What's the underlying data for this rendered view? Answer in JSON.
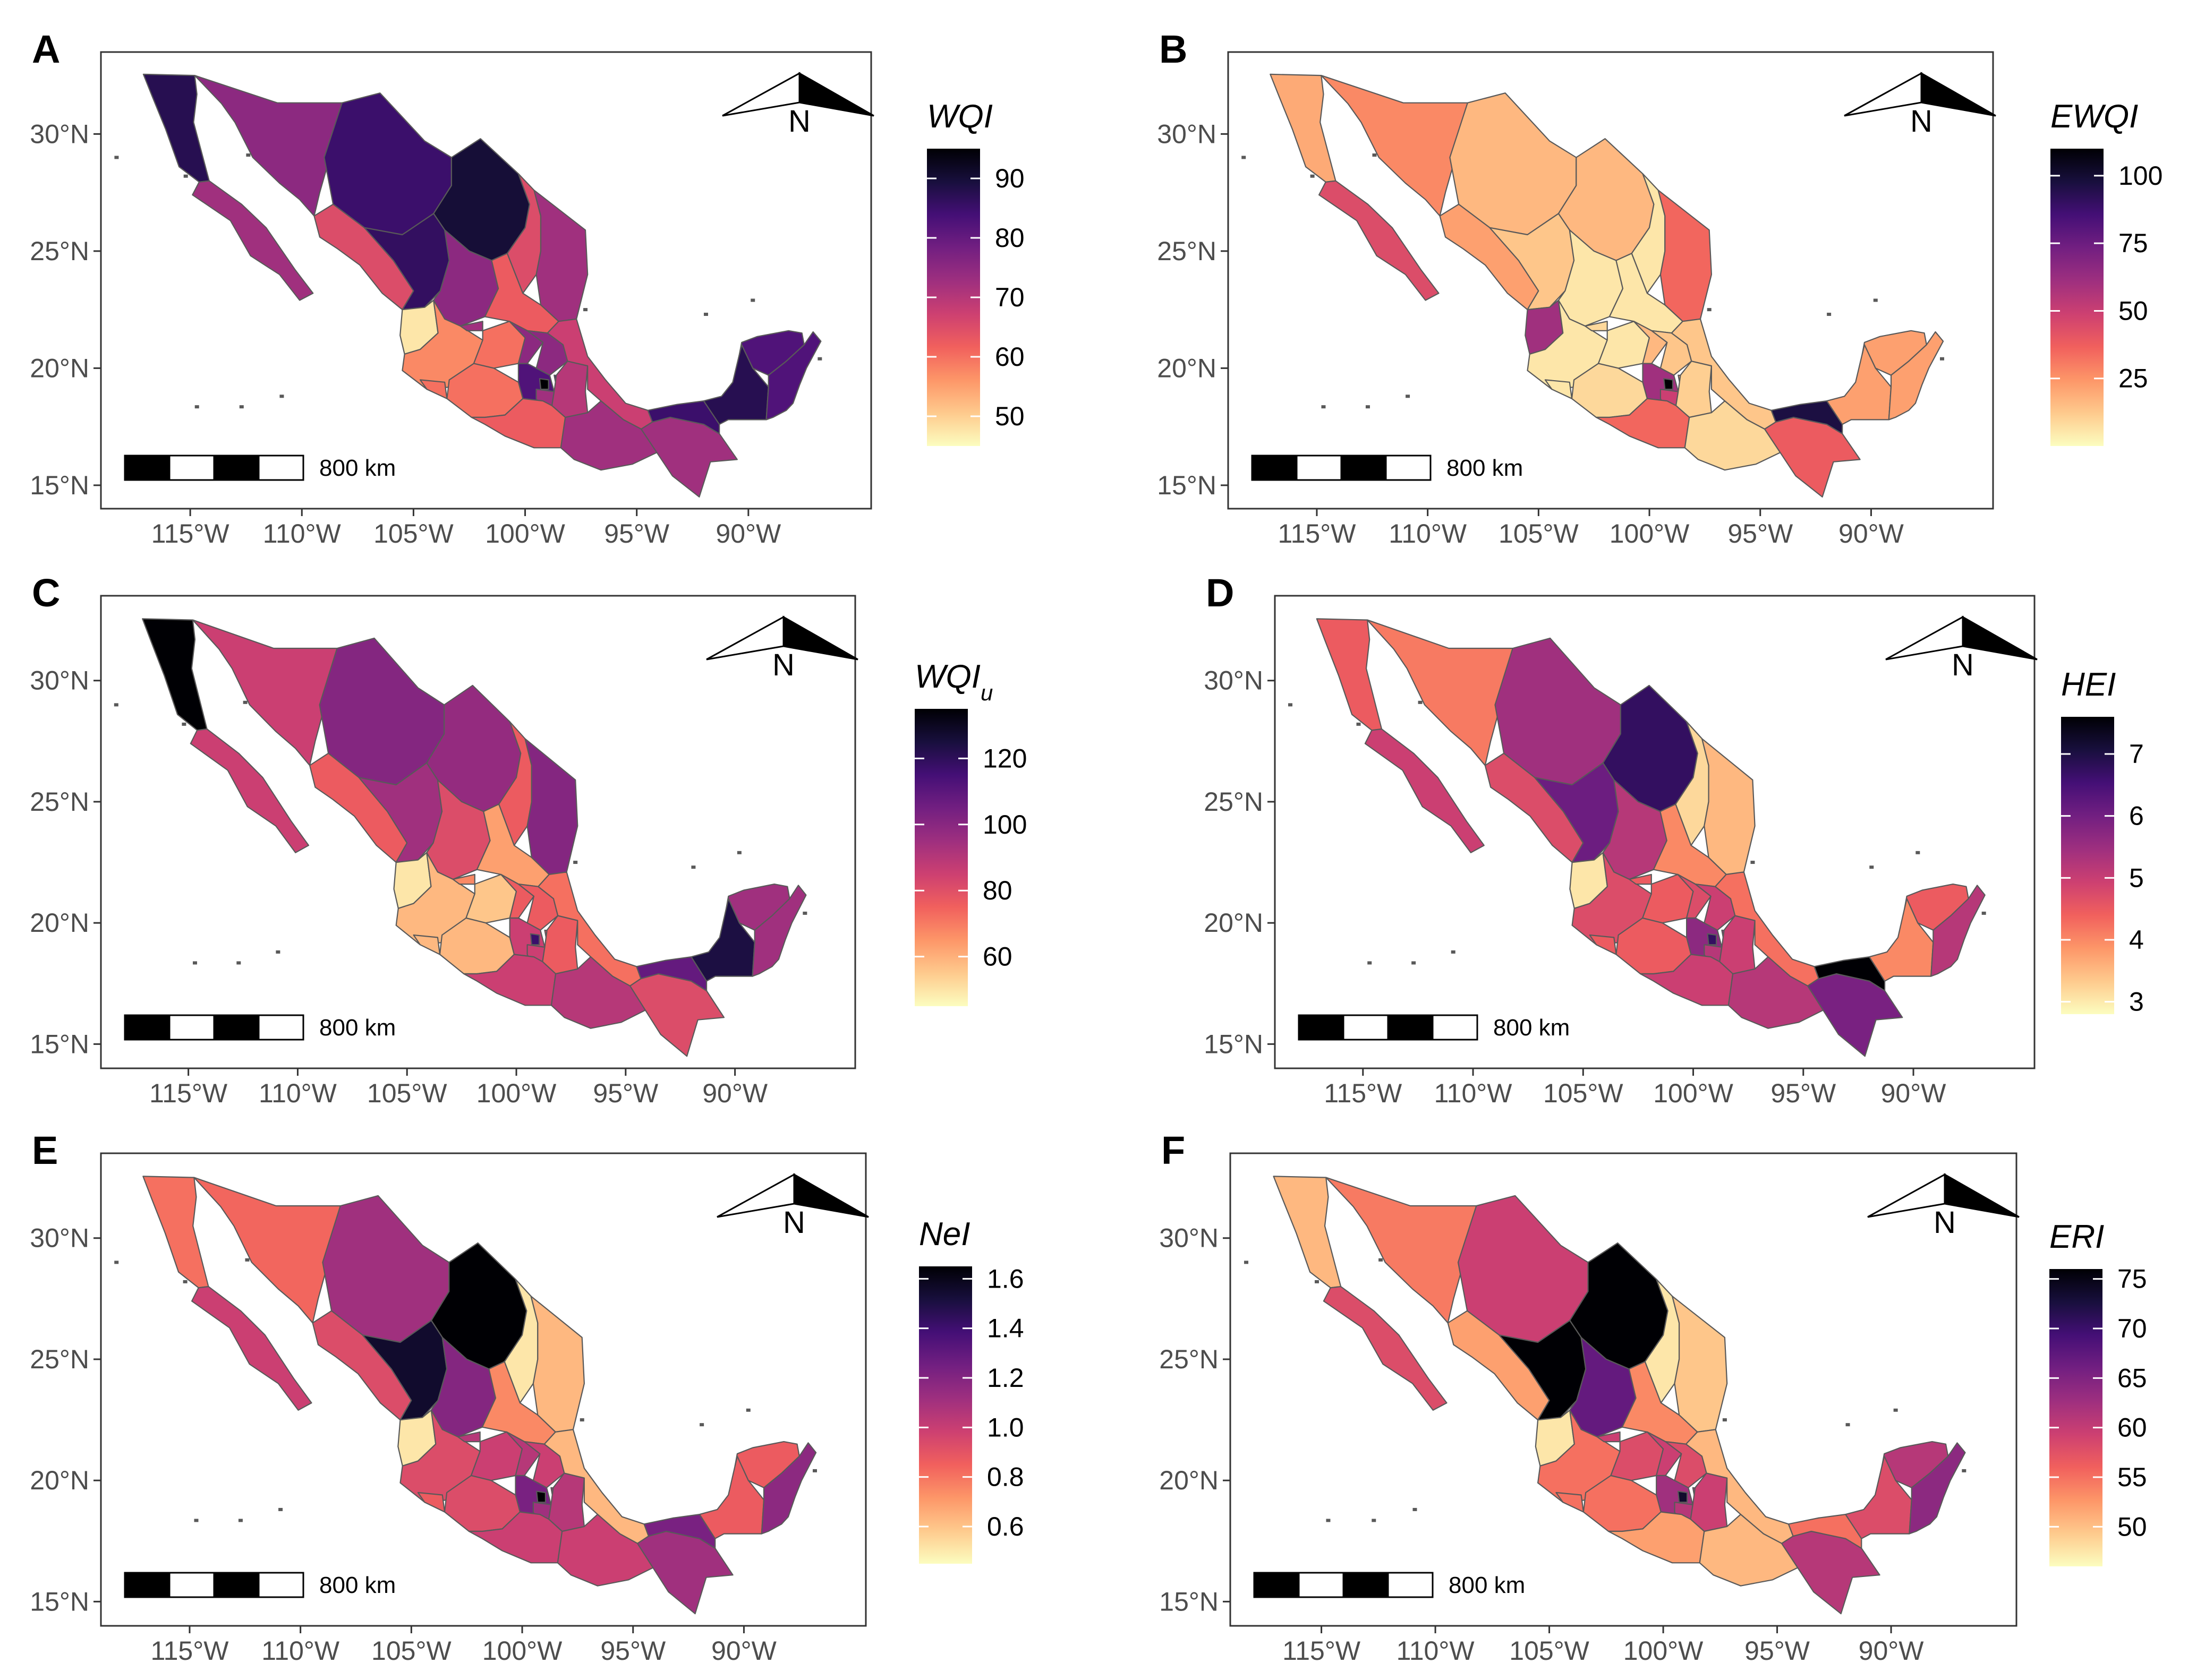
{
  "figure": {
    "description_free": true,
    "lon_range": [
      -119,
      -84.5
    ],
    "lat_range": [
      14,
      33.5
    ],
    "lon_ticks": [
      {
        "value": -115,
        "label": "115°W"
      },
      {
        "value": -110,
        "label": "110°W"
      },
      {
        "value": -105,
        "label": "105°W"
      },
      {
        "value": -100,
        "label": "100°W"
      },
      {
        "value": -95,
        "label": "95°W"
      },
      {
        "value": -90,
        "label": "90°W"
      }
    ],
    "lat_ticks": [
      {
        "value": 30,
        "label": "30°N"
      },
      {
        "value": 25,
        "label": "25°N"
      },
      {
        "value": 20,
        "label": "20°N"
      },
      {
        "value": 15,
        "label": "15°N"
      }
    ],
    "scale_bar_label": "800 km",
    "north_label": "N",
    "palette": [
      "#fcfdbf",
      "#feca8d",
      "#fd9668",
      "#f1605d",
      "#cd4071",
      "#9e2f7f",
      "#721f81",
      "#440f76",
      "#180f3d",
      "#000004"
    ],
    "border_color": "#595959"
  },
  "panels": [
    {
      "letter": "A",
      "legend": {
        "title": "WQI",
        "sub": "",
        "min": 45,
        "max": 95,
        "ticks": [
          {
            "v": 90,
            "label": "90"
          },
          {
            "v": 80,
            "label": "80"
          },
          {
            "v": 70,
            "label": "70"
          },
          {
            "v": 60,
            "label": "60"
          },
          {
            "v": 50,
            "label": "50"
          }
        ]
      },
      "states": {
        "BCN": 0.85,
        "BCS": 0.55,
        "SON": 0.6,
        "CHH": 0.8,
        "COA": 0.9,
        "NLE": 0.4,
        "TAM": 0.55,
        "SIN": 0.4,
        "DUR": 0.82,
        "ZAC": 0.6,
        "SLP": 0.35,
        "NAY": 0.05,
        "JAL": 0.25,
        "AGU": 0.55,
        "GUA": 0.3,
        "QUE": 0.6,
        "HID": 0.6,
        "MEX": 0.75,
        "CMX": 1.0,
        "MOR": 0.55,
        "TLA": 0.75,
        "PUE": 0.5,
        "VER": 0.45,
        "COL": 0.3,
        "MIC": 0.3,
        "GRO": 0.35,
        "OAX": 0.55,
        "CHP": 0.55,
        "TAB": 0.8,
        "CAM": 0.85,
        "YUC": 0.75,
        "ROO": 0.75
      }
    },
    {
      "letter": "B",
      "legend": {
        "title": "EWQI",
        "sub": "",
        "min": 0,
        "max": 110,
        "ticks": [
          {
            "v": 100,
            "label": "100"
          },
          {
            "v": 75,
            "label": "75"
          },
          {
            "v": 50,
            "label": "50"
          },
          {
            "v": 25,
            "label": "25"
          }
        ]
      },
      "states": {
        "BCN": 0.18,
        "BCS": 0.4,
        "SON": 0.25,
        "CHH": 0.15,
        "COA": 0.15,
        "NLE": 0.05,
        "TAM": 0.32,
        "SIN": 0.2,
        "DUR": 0.12,
        "ZAC": 0.05,
        "SLP": 0.05,
        "NAY": 0.55,
        "JAL": 0.05,
        "AGU": 0.08,
        "GUA": 0.05,
        "QUE": 0.15,
        "HID": 0.12,
        "MEX": 0.55,
        "CMX": 1.0,
        "MOR": 0.45,
        "TLA": 0.2,
        "PUE": 0.1,
        "VER": 0.12,
        "COL": 0.05,
        "MIC": 0.08,
        "GRO": 0.32,
        "OAX": 0.08,
        "CHP": 0.35,
        "TAB": 0.88,
        "CAM": 0.2,
        "YUC": 0.2,
        "ROO": 0.2
      }
    },
    {
      "letter": "C",
      "legend": {
        "title": "WQI",
        "sub": "u",
        "min": 45,
        "max": 135,
        "ticks": [
          {
            "v": 120,
            "label": "120"
          },
          {
            "v": 100,
            "label": "100"
          },
          {
            "v": 80,
            "label": "80"
          },
          {
            "v": 60,
            "label": "60"
          }
        ]
      },
      "states": {
        "BCN": 1.0,
        "BCS": 0.45,
        "SON": 0.45,
        "CHH": 0.62,
        "COA": 0.58,
        "NLE": 0.35,
        "TAM": 0.62,
        "SIN": 0.35,
        "DUR": 0.55,
        "ZAC": 0.4,
        "SLP": 0.2,
        "NAY": 0.05,
        "JAL": 0.15,
        "AGU": 0.25,
        "GUA": 0.12,
        "QUE": 0.35,
        "HID": 0.35,
        "MEX": 0.45,
        "CMX": 0.8,
        "MOR": 0.45,
        "TLA": 0.4,
        "PUE": 0.35,
        "VER": 0.3,
        "COL": 0.15,
        "MIC": 0.15,
        "GRO": 0.45,
        "OAX": 0.5,
        "CHP": 0.4,
        "TAB": 0.7,
        "CAM": 0.88,
        "YUC": 0.55,
        "ROO": 0.55
      }
    },
    {
      "letter": "D",
      "legend": {
        "title": "HEI",
        "sub": "",
        "min": 2.8,
        "max": 7.6,
        "ticks": [
          {
            "v": 7,
            "label": "7"
          },
          {
            "v": 6,
            "label": "6"
          },
          {
            "v": 5,
            "label": "5"
          },
          {
            "v": 4,
            "label": "4"
          },
          {
            "v": 3,
            "label": "3"
          }
        ]
      },
      "states": {
        "BCN": 0.35,
        "BCS": 0.45,
        "SON": 0.28,
        "CHH": 0.55,
        "COA": 0.82,
        "NLE": 0.08,
        "TAM": 0.15,
        "SIN": 0.4,
        "DUR": 0.68,
        "ZAC": 0.5,
        "SLP": 0.25,
        "NAY": 0.05,
        "JAL": 0.4,
        "AGU": 0.35,
        "GUA": 0.35,
        "QUE": 0.4,
        "HID": 0.45,
        "MEX": 0.6,
        "CMX": 0.82,
        "MOR": 0.5,
        "TLA": 0.55,
        "PUE": 0.45,
        "VER": 0.3,
        "COL": 0.35,
        "MIC": 0.35,
        "GRO": 0.45,
        "OAX": 0.5,
        "CHP": 0.65,
        "TAB": 1.0,
        "CAM": 0.25,
        "YUC": 0.35,
        "ROO": 0.5
      }
    },
    {
      "letter": "E",
      "legend": {
        "title": "NeI",
        "sub": "",
        "min": 0.45,
        "max": 1.65,
        "ticks": [
          {
            "v": 1.6,
            "label": "1.6"
          },
          {
            "v": 1.4,
            "label": "1.4"
          },
          {
            "v": 1.2,
            "label": "1.2"
          },
          {
            "v": 1.0,
            "label": "1.0"
          },
          {
            "v": 0.8,
            "label": "0.8"
          },
          {
            "v": 0.6,
            "label": "0.6"
          }
        ]
      },
      "states": {
        "BCN": 0.3,
        "BCS": 0.45,
        "SON": 0.32,
        "CHH": 0.55,
        "COA": 1.0,
        "NLE": 0.05,
        "TAM": 0.15,
        "SIN": 0.4,
        "DUR": 0.92,
        "ZAC": 0.62,
        "SLP": 0.25,
        "NAY": 0.05,
        "JAL": 0.4,
        "AGU": 0.5,
        "GUA": 0.45,
        "QUE": 0.5,
        "HID": 0.45,
        "MEX": 0.65,
        "CMX": 1.0,
        "MOR": 0.55,
        "TLA": 0.55,
        "PUE": 0.5,
        "VER": 0.15,
        "COL": 0.35,
        "MIC": 0.4,
        "GRO": 0.45,
        "OAX": 0.45,
        "CHP": 0.55,
        "TAB": 0.65,
        "CAM": 0.35,
        "YUC": 0.35,
        "ROO": 0.6
      }
    },
    {
      "letter": "F",
      "legend": {
        "title": "ERI",
        "sub": "",
        "min": 46,
        "max": 76,
        "ticks": [
          {
            "v": 75,
            "label": "75"
          },
          {
            "v": 70,
            "label": "70"
          },
          {
            "v": 65,
            "label": "65"
          },
          {
            "v": 60,
            "label": "60"
          },
          {
            "v": 55,
            "label": "55"
          },
          {
            "v": 50,
            "label": "50"
          }
        ]
      },
      "states": {
        "BCN": 0.15,
        "BCS": 0.4,
        "SON": 0.28,
        "CHH": 0.45,
        "COA": 1.0,
        "NLE": 0.05,
        "TAM": 0.12,
        "SIN": 0.2,
        "DUR": 1.0,
        "ZAC": 0.7,
        "SLP": 0.25,
        "NAY": 0.05,
        "JAL": 0.3,
        "AGU": 0.45,
        "GUA": 0.4,
        "QUE": 0.45,
        "HID": 0.4,
        "MEX": 0.55,
        "CMX": 0.92,
        "MOR": 0.5,
        "TLA": 0.55,
        "PUE": 0.45,
        "VER": 0.15,
        "COL": 0.3,
        "MIC": 0.3,
        "GRO": 0.2,
        "OAX": 0.15,
        "CHP": 0.5,
        "TAB": 0.3,
        "CAM": 0.4,
        "YUC": 0.5,
        "ROO": 0.6
      }
    }
  ]
}
